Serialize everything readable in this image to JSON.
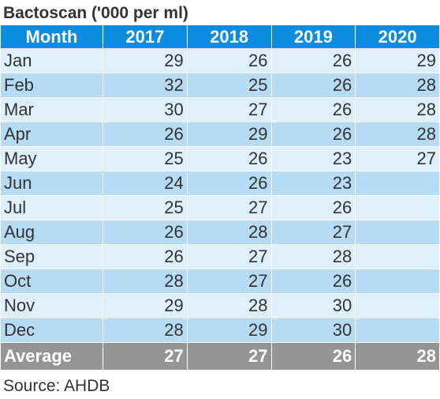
{
  "title": "Bactoscan ('000 per ml)",
  "headers": [
    "Month",
    "2017",
    "2018",
    "2019",
    "2020"
  ],
  "rows": [
    {
      "month": "Jan",
      "y2017": "29",
      "y2018": "26",
      "y2019": "26",
      "y2020": "29"
    },
    {
      "month": "Feb",
      "y2017": "32",
      "y2018": "25",
      "y2019": "26",
      "y2020": "28"
    },
    {
      "month": "Mar",
      "y2017": "30",
      "y2018": "27",
      "y2019": "26",
      "y2020": "28"
    },
    {
      "month": "Apr",
      "y2017": "26",
      "y2018": "29",
      "y2019": "26",
      "y2020": "28"
    },
    {
      "month": "May",
      "y2017": "25",
      "y2018": "26",
      "y2019": "23",
      "y2020": "27"
    },
    {
      "month": "Jun",
      "y2017": "24",
      "y2018": "26",
      "y2019": "23",
      "y2020": ""
    },
    {
      "month": "Jul",
      "y2017": "25",
      "y2018": "27",
      "y2019": "26",
      "y2020": ""
    },
    {
      "month": "Aug",
      "y2017": "26",
      "y2018": "28",
      "y2019": "27",
      "y2020": ""
    },
    {
      "month": "Sep",
      "y2017": "26",
      "y2018": "27",
      "y2019": "28",
      "y2020": ""
    },
    {
      "month": "Oct",
      "y2017": "28",
      "y2018": "27",
      "y2019": "26",
      "y2020": ""
    },
    {
      "month": "Nov",
      "y2017": "29",
      "y2018": "28",
      "y2019": "30",
      "y2020": ""
    },
    {
      "month": "Dec",
      "y2017": "28",
      "y2018": "29",
      "y2019": "30",
      "y2020": ""
    }
  ],
  "footer": {
    "label": "Average",
    "y2017": "27",
    "y2018": "27",
    "y2019": "26",
    "y2020": "28"
  },
  "source": "Source: AHDB",
  "colors": {
    "header": "#0a8de0",
    "row_light": "#def0fb",
    "row_dark": "#b6dbf4",
    "footer": "#959595"
  }
}
